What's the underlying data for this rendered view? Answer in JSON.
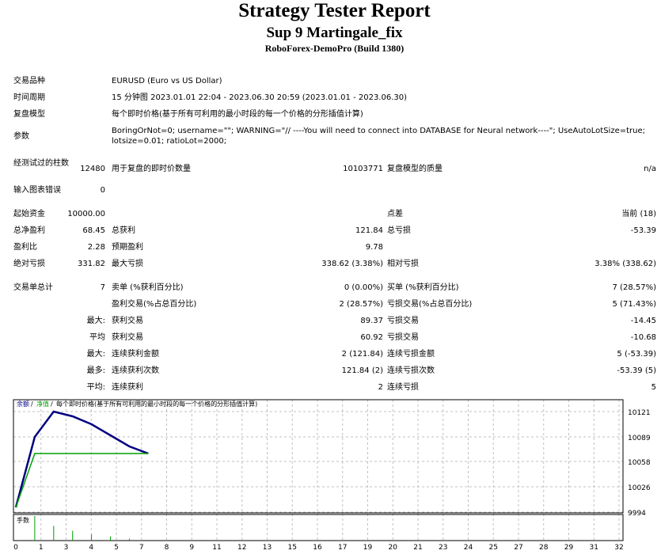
{
  "header": {
    "title": "Strategy Tester Report",
    "subtitle": "Sup 9 Martingale_fix",
    "build": "RoboForex-DemoPro (Build 1380)"
  },
  "info_rows": [
    {
      "label": "交易品种",
      "value": "EURUSD (Euro vs US Dollar)"
    },
    {
      "label": "时间周期",
      "value": "15 分钟图 2023.01.01 22:04 - 2023.06.30 20:59 (2023.01.01 - 2023.06.30)"
    },
    {
      "label": "复盘模型",
      "value": "每个即时价格(基于所有可利用的最小时段的每一个价格的分形插值计算)"
    },
    {
      "label": "参数",
      "value": "BoringOrNot=0; username=\"\"; WARNING=\"// ----You will need to connect into DATABASE for Neural network----\"; UseAutoLotSize=true; lotsize=0.01; ratioLot=2000;"
    }
  ],
  "stat_rows": [
    [
      "经测试过的柱数",
      "12480",
      "用于复盘的即时价数量",
      "10103771",
      "复盘模型的质量",
      "n/a"
    ],
    [
      "输入图表错误",
      "0",
      "",
      "",
      "",
      ""
    ],
    [
      "起始资金",
      "10000.00",
      "",
      "",
      "点差",
      "当前 (18)"
    ],
    [
      "总净盈利",
      "68.45",
      "总获利",
      "121.84",
      "总亏损",
      "-53.39"
    ],
    [
      "盈利比",
      "2.28",
      "预期盈利",
      "9.78",
      "",
      ""
    ],
    [
      "绝对亏损",
      "331.82",
      "最大亏损",
      "338.62 (3.38%)",
      "相对亏损",
      "3.38% (338.62)"
    ],
    [
      "交易单总计",
      "7",
      "卖单 (%获利百分比)",
      "0 (0.00%)",
      "买单 (%获利百分比)",
      "7 (28.57%)"
    ],
    [
      "",
      "",
      "盈利交易(%占总百分比)",
      "2 (28.57%)",
      "亏损交易(%占总百分比)",
      "5 (71.43%)"
    ],
    [
      "",
      "最大:",
      "获利交易",
      "89.37",
      "亏损交易",
      "-14.45"
    ],
    [
      "",
      "平均",
      "获利交易",
      "60.92",
      "亏损交易",
      "-10.68"
    ],
    [
      "",
      "最大:",
      "连续获利金额",
      "2 (121.84)",
      "连续亏损金额",
      "5 (-53.39)"
    ],
    [
      "",
      "最多:",
      "连续获利次数",
      "121.84 (2)",
      "连续亏损次数",
      "-53.39 (5)"
    ],
    [
      "",
      "平均:",
      "连续获利",
      "2",
      "连续亏损",
      "5"
    ]
  ],
  "chart_data": {
    "type": "line",
    "legend": {
      "balance": "余额",
      "equity": "净值",
      "model": "每个即时价格(基于所有可利用的最小时段的每一个价格的分形插值计算)"
    },
    "colors": {
      "balance": "#000080",
      "equity": "#00a000",
      "lots": "#00a000",
      "grid": "#c0c0c0"
    },
    "series": [
      {
        "name": "余额",
        "values": [
          10000,
          10089,
          10121,
          10115,
          10105,
          10091,
          10077,
          10068
        ]
      },
      {
        "name": "净值",
        "values": [
          10000,
          10068,
          10068,
          10068,
          10068,
          10068,
          10068,
          10068
        ]
      }
    ],
    "y_ticks": [
      "10121",
      "10089",
      "10058",
      "10026",
      "9994"
    ],
    "ylim": [
      9994,
      10136
    ],
    "x_ticks": [
      "0",
      "1",
      "3",
      "4",
      "5",
      "7",
      "8",
      "9",
      "11",
      "12",
      "13",
      "15",
      "16",
      "17",
      "19",
      "20",
      "21",
      "23",
      "24",
      "25",
      "27",
      "28",
      "29",
      "31",
      "32"
    ],
    "lots_label": "手数",
    "lots_relative": [
      1.0,
      0.6,
      0.4,
      0.25,
      0.17,
      0.08
    ],
    "grid": true
  }
}
